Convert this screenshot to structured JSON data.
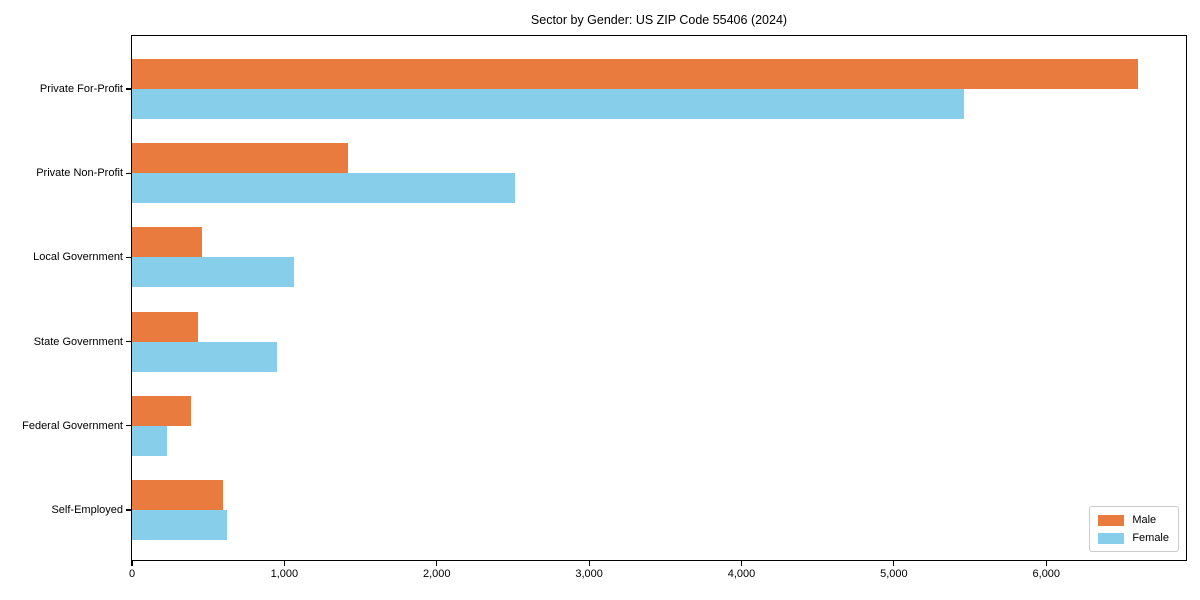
{
  "chart_data": {
    "type": "bar",
    "orientation": "horizontal",
    "title": "Sector by Gender: US ZIP Code 55406 (2024)",
    "categories": [
      "Private For-Profit",
      "Private Non-Profit",
      "Local Government",
      "State Government",
      "Federal Government",
      "Self-Employed"
    ],
    "series": [
      {
        "name": "Male",
        "color": "#e87b3d",
        "values": [
          6600,
          1420,
          460,
          430,
          385,
          600
        ]
      },
      {
        "name": "Female",
        "color": "#87ceeb",
        "values": [
          5460,
          2510,
          1060,
          950,
          230,
          620
        ]
      }
    ],
    "xlim": [
      0,
      6930
    ],
    "xticks": [
      0,
      1000,
      2000,
      3000,
      4000,
      5000,
      6000
    ],
    "xtick_labels": [
      "0",
      "1,000",
      "2,000",
      "3,000",
      "4,000",
      "5,000",
      "6,000"
    ],
    "xlabel": "",
    "ylabel": "",
    "grid": false,
    "legend_position": "lower right"
  }
}
